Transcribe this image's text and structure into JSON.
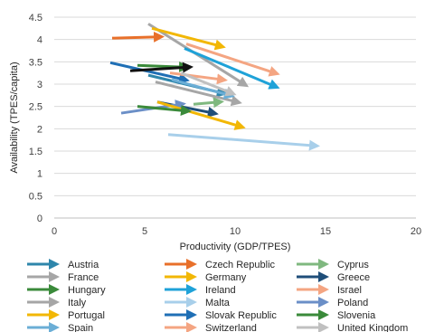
{
  "chart_data": {
    "type": "line",
    "xlabel": "Productivity (GDP/TPES)",
    "ylabel": "Availability (TPES/capita)",
    "xlim": [
      0,
      20
    ],
    "ylim": [
      0,
      4.5
    ],
    "xticks": [
      "0",
      "5",
      "10",
      "15",
      "20"
    ],
    "yticks": [
      "0",
      "0.5",
      "1",
      "1.5",
      "2",
      "2.5",
      "3",
      "3.5",
      "4",
      "4.5"
    ],
    "grid": "horizontal",
    "legend_position": "bottom",
    "series": [
      {
        "name": "Austria",
        "color": "#2E86AB",
        "x": [
          5.2,
          9.3
        ],
        "y": [
          3.2,
          2.8
        ]
      },
      {
        "name": "Czech Republic",
        "color": "#E8702A",
        "x": [
          3.2,
          5.8
        ],
        "y": [
          4.03,
          4.06
        ]
      },
      {
        "name": "Cyprus",
        "color": "#7FB87F",
        "x": [
          7.7,
          9.1
        ],
        "y": [
          2.55,
          2.6
        ]
      },
      {
        "name": "France",
        "color": "#A6A6A6",
        "x": [
          5.2,
          10.5
        ],
        "y": [
          4.35,
          3.0
        ]
      },
      {
        "name": "Germany",
        "color": "#F2B705",
        "x": [
          5.4,
          9.2
        ],
        "y": [
          4.25,
          3.85
        ]
      },
      {
        "name": "Greece",
        "color": "#1F4E79",
        "x": [
          5.7,
          8.8
        ],
        "y": [
          2.6,
          2.35
        ]
      },
      {
        "name": "Hungary",
        "color": "#3A8A3A",
        "x": [
          4.6,
          7.2
        ],
        "y": [
          3.42,
          3.38
        ]
      },
      {
        "name": "Ireland",
        "color": "#1FA2D8",
        "x": [
          7.2,
          12.2
        ],
        "y": [
          3.8,
          2.95
        ]
      },
      {
        "name": "Israel",
        "color": "#F4A582",
        "x": [
          7.3,
          12.2
        ],
        "y": [
          3.9,
          3.25
        ]
      },
      {
        "name": "Italy",
        "color": "#A6A6A6",
        "x": [
          5.6,
          10.1
        ],
        "y": [
          3.05,
          2.6
        ]
      },
      {
        "name": "Malta",
        "color": "#A8CFEA",
        "x": [
          6.3,
          14.4
        ],
        "y": [
          1.87,
          1.62
        ]
      },
      {
        "name": "Poland",
        "color": "#6B8FC7",
        "x": [
          3.7,
          7.0
        ],
        "y": [
          2.35,
          2.55
        ]
      },
      {
        "name": "Portugal",
        "color": "#F2B705",
        "x": [
          5.7,
          10.3
        ],
        "y": [
          2.6,
          2.05
        ]
      },
      {
        "name": "Slovak Republic",
        "color": "#1F6FB5",
        "x": [
          3.1,
          7.2
        ],
        "y": [
          3.48,
          3.1
        ]
      },
      {
        "name": "Slovenia",
        "color": "#3A8A3A",
        "x": [
          4.6,
          7.3
        ],
        "y": [
          2.5,
          2.4
        ]
      },
      {
        "name": "Spain",
        "color": "#6BAED6",
        "x": [
          6.5,
          9.7
        ],
        "y": [
          3.1,
          2.75
        ]
      },
      {
        "name": "Switzerland",
        "color": "#F4A582",
        "x": [
          6.4,
          9.3
        ],
        "y": [
          3.25,
          3.1
        ]
      },
      {
        "name": "United Kingdom",
        "color": "#C0C0C0",
        "x": [
          7.0,
          9.8
        ],
        "y": [
          3.25,
          2.8
        ]
      },
      {
        "name": "",
        "color": "#111111",
        "x": [
          4.2,
          7.4
        ],
        "y": [
          3.3,
          3.38
        ]
      }
    ]
  }
}
